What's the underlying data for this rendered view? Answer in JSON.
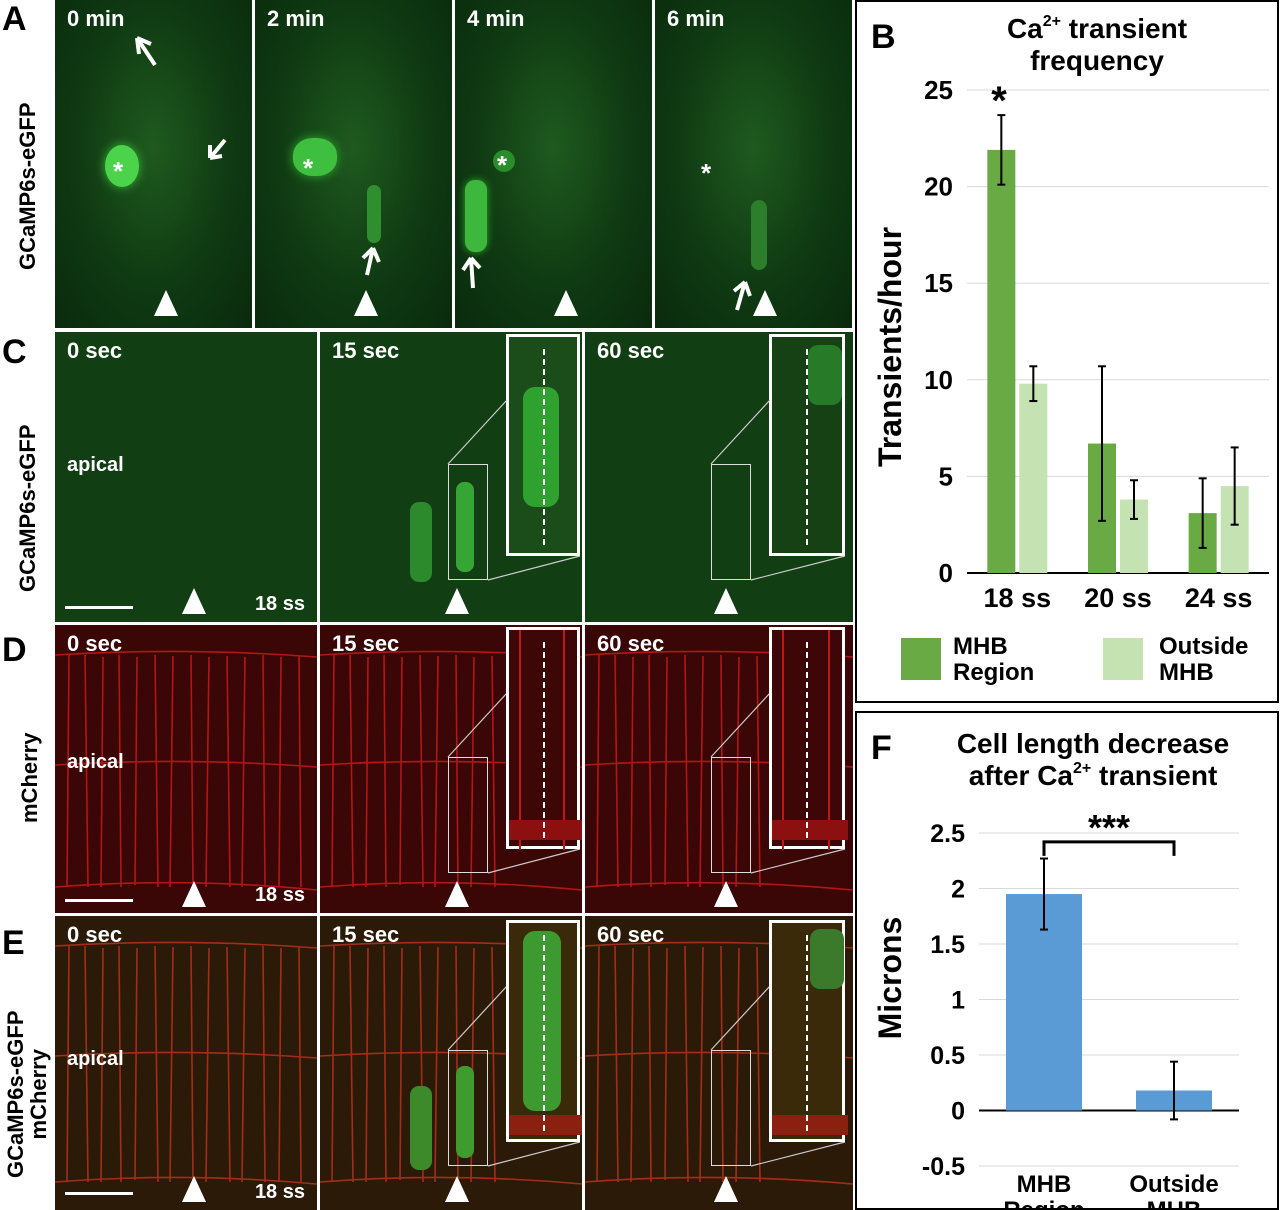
{
  "panels": {
    "A": {
      "letter": "A",
      "row_label": "GCaMP6s-eGFP",
      "tiles": [
        "0 min",
        "2 min",
        "4 min",
        "6 min"
      ]
    },
    "C": {
      "letter": "C",
      "row_label": "GCaMP6s-eGFP",
      "tiles": [
        "0 sec",
        "15 sec",
        "60 sec"
      ],
      "apical": "apical",
      "stage": "18 ss"
    },
    "D": {
      "letter": "D",
      "row_label": "mCherry",
      "tiles": [
        "0 sec",
        "15 sec",
        "60 sec"
      ],
      "apical": "apical",
      "stage": "18 ss"
    },
    "E": {
      "letter": "E",
      "row_label_1": "GCaMP6s-eGFP",
      "row_label_2": "mCherry",
      "tiles": [
        "0 sec",
        "15 sec",
        "60 sec"
      ],
      "apical": "apical",
      "stage": "18 ss"
    },
    "asterisk": "*"
  },
  "chart_B": {
    "letter": "B",
    "title_line1_pre": "Ca",
    "title_line1_sup": "2+",
    "title_line1_post": " transient",
    "title_line2": "frequency",
    "ylabel": "Transients/hour",
    "yticks": [
      "0",
      "5",
      "10",
      "15",
      "20",
      "25"
    ],
    "significance": "*",
    "legend": [
      "MHB",
      "Region",
      "Outside",
      "MHB"
    ],
    "colors": {
      "mhb": "#6aaa45",
      "outside": "#c5e2b3"
    }
  },
  "chart_F": {
    "letter": "F",
    "title_line1": "Cell length decrease",
    "title_line2_pre": "after Ca",
    "title_line2_sup": "2+",
    "title_line2_post": " transient",
    "ylabel": "Microns",
    "yticks": [
      "-0.5",
      "0",
      "0.5",
      "1",
      "1.5",
      "2",
      "2.5"
    ],
    "significance": "***",
    "colors": {
      "bar": "#5b9bd5"
    }
  },
  "chart_data": [
    {
      "type": "bar",
      "categories": [
        "18 ss",
        "20 ss",
        "24 ss"
      ],
      "series": [
        {
          "name": "MHB Region",
          "values": [
            21.9,
            6.7,
            3.1
          ],
          "errors": [
            1.8,
            4.0,
            1.8
          ]
        },
        {
          "name": "Outside MHB",
          "values": [
            9.8,
            3.8,
            4.5
          ],
          "errors": [
            0.9,
            1.0,
            2.0
          ]
        }
      ],
      "ylabel": "Transients/hour",
      "ylim": [
        0,
        25
      ],
      "grid": true,
      "legend_position": "bottom"
    },
    {
      "type": "bar",
      "categories": [
        "MHB Region",
        "Outside MHB"
      ],
      "values": [
        1.95,
        0.18
      ],
      "errors": [
        0.32,
        0.26
      ],
      "ylabel": "Microns",
      "ylim": [
        -0.5,
        2.5
      ],
      "grid": true
    }
  ]
}
